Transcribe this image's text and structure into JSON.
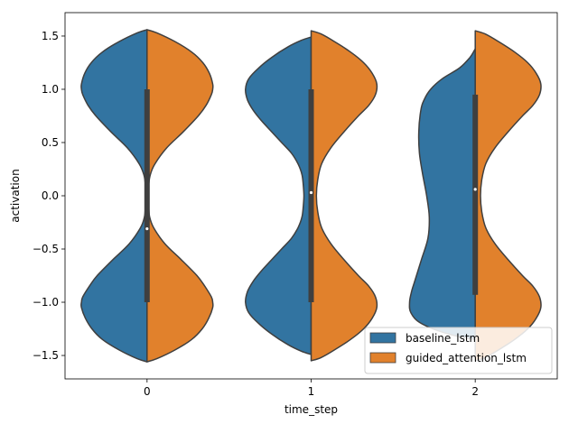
{
  "chart_data": {
    "type": "violin",
    "split": true,
    "xlabel": "time_step",
    "ylabel": "activation",
    "categories": [
      "0",
      "1",
      "2"
    ],
    "ylim": [
      -1.72,
      1.72
    ],
    "yticks": [
      -1.5,
      -1.0,
      -0.5,
      0.0,
      0.5,
      1.0,
      1.5
    ],
    "ytick_labels": [
      "−1.5",
      "−1.0",
      "−0.5",
      "0.0",
      "0.5",
      "1.0",
      "1.5"
    ],
    "grid": false,
    "legend": {
      "position": "lower right"
    },
    "series": [
      {
        "name": "baseline_lstm",
        "color": "#3274a1",
        "side": "left",
        "violins": [
          {
            "category": "0",
            "ymin": -1.56,
            "ymax": 1.56,
            "profile": [
              [
                1.56,
                0.0
              ],
              [
                1.53,
                0.15
              ],
              [
                1.45,
                0.42
              ],
              [
                1.35,
                0.68
              ],
              [
                1.25,
                0.85
              ],
              [
                1.15,
                0.95
              ],
              [
                1.05,
                1.0
              ],
              [
                1.0,
                1.0
              ],
              [
                0.95,
                0.98
              ],
              [
                0.85,
                0.9
              ],
              [
                0.75,
                0.78
              ],
              [
                0.6,
                0.55
              ],
              [
                0.45,
                0.3
              ],
              [
                0.3,
                0.12
              ],
              [
                0.2,
                0.05
              ],
              [
                0.1,
                0.025
              ],
              [
                0.0,
                0.02
              ],
              [
                -0.1,
                0.025
              ],
              [
                -0.2,
                0.04
              ],
              [
                -0.3,
                0.1
              ],
              [
                -0.45,
                0.27
              ],
              [
                -0.6,
                0.52
              ],
              [
                -0.75,
                0.76
              ],
              [
                -0.85,
                0.88
              ],
              [
                -0.95,
                0.98
              ],
              [
                -1.0,
                1.0
              ],
              [
                -1.05,
                1.0
              ],
              [
                -1.15,
                0.94
              ],
              [
                -1.25,
                0.84
              ],
              [
                -1.35,
                0.68
              ],
              [
                -1.45,
                0.42
              ],
              [
                -1.53,
                0.15
              ],
              [
                -1.56,
                0.0
              ]
            ]
          },
          {
            "category": "1",
            "ymin": -1.49,
            "ymax": 1.49,
            "profile": [
              [
                1.49,
                0.0
              ],
              [
                1.46,
                0.15
              ],
              [
                1.4,
                0.35
              ],
              [
                1.3,
                0.6
              ],
              [
                1.2,
                0.8
              ],
              [
                1.1,
                0.95
              ],
              [
                1.0,
                1.0
              ],
              [
                0.9,
                0.97
              ],
              [
                0.8,
                0.88
              ],
              [
                0.7,
                0.75
              ],
              [
                0.6,
                0.6
              ],
              [
                0.5,
                0.45
              ],
              [
                0.4,
                0.3
              ],
              [
                0.3,
                0.2
              ],
              [
                0.2,
                0.14
              ],
              [
                0.1,
                0.12
              ],
              [
                0.0,
                0.11
              ],
              [
                -0.1,
                0.12
              ],
              [
                -0.2,
                0.14
              ],
              [
                -0.3,
                0.2
              ],
              [
                -0.4,
                0.3
              ],
              [
                -0.5,
                0.45
              ],
              [
                -0.6,
                0.6
              ],
              [
                -0.7,
                0.75
              ],
              [
                -0.8,
                0.88
              ],
              [
                -0.9,
                0.97
              ],
              [
                -1.0,
                1.0
              ],
              [
                -1.1,
                0.95
              ],
              [
                -1.2,
                0.8
              ],
              [
                -1.3,
                0.6
              ],
              [
                -1.4,
                0.35
              ],
              [
                -1.46,
                0.15
              ],
              [
                -1.49,
                0.0
              ]
            ]
          },
          {
            "category": "2",
            "ymin": -1.35,
            "ymax": 1.38,
            "profile": [
              [
                1.38,
                0.0
              ],
              [
                1.3,
                0.08
              ],
              [
                1.2,
                0.24
              ],
              [
                1.1,
                0.5
              ],
              [
                1.0,
                0.68
              ],
              [
                0.9,
                0.78
              ],
              [
                0.8,
                0.83
              ],
              [
                0.6,
                0.86
              ],
              [
                0.4,
                0.85
              ],
              [
                0.2,
                0.8
              ],
              [
                0.0,
                0.74
              ],
              [
                -0.2,
                0.7
              ],
              [
                -0.4,
                0.72
              ],
              [
                -0.6,
                0.82
              ],
              [
                -0.8,
                0.92
              ],
              [
                -0.9,
                0.97
              ],
              [
                -1.0,
                1.0
              ],
              [
                -1.1,
                0.98
              ],
              [
                -1.2,
                0.82
              ],
              [
                -1.3,
                0.4
              ],
              [
                -1.35,
                0.0
              ]
            ]
          }
        ]
      },
      {
        "name": "guided_attention_lstm",
        "color": "#e1812c",
        "side": "right",
        "violins": [
          {
            "category": "0",
            "ymin": -1.56,
            "ymax": 1.56,
            "profile": [
              [
                1.56,
                0.0
              ],
              [
                1.53,
                0.15
              ],
              [
                1.45,
                0.42
              ],
              [
                1.35,
                0.68
              ],
              [
                1.25,
                0.85
              ],
              [
                1.15,
                0.95
              ],
              [
                1.05,
                1.0
              ],
              [
                1.0,
                1.0
              ],
              [
                0.95,
                0.98
              ],
              [
                0.85,
                0.9
              ],
              [
                0.75,
                0.78
              ],
              [
                0.6,
                0.55
              ],
              [
                0.45,
                0.3
              ],
              [
                0.3,
                0.12
              ],
              [
                0.2,
                0.05
              ],
              [
                0.1,
                0.025
              ],
              [
                0.0,
                0.02
              ],
              [
                -0.1,
                0.025
              ],
              [
                -0.2,
                0.04
              ],
              [
                -0.3,
                0.1
              ],
              [
                -0.45,
                0.27
              ],
              [
                -0.6,
                0.52
              ],
              [
                -0.75,
                0.76
              ],
              [
                -0.85,
                0.88
              ],
              [
                -0.95,
                0.98
              ],
              [
                -1.0,
                1.0
              ],
              [
                -1.05,
                1.0
              ],
              [
                -1.15,
                0.94
              ],
              [
                -1.25,
                0.84
              ],
              [
                -1.35,
                0.68
              ],
              [
                -1.45,
                0.42
              ],
              [
                -1.53,
                0.15
              ],
              [
                -1.56,
                0.0
              ]
            ]
          },
          {
            "category": "1",
            "ymin": -1.55,
            "ymax": 1.55,
            "profile": [
              [
                1.55,
                0.0
              ],
              [
                1.52,
                0.15
              ],
              [
                1.45,
                0.35
              ],
              [
                1.35,
                0.6
              ],
              [
                1.25,
                0.8
              ],
              [
                1.15,
                0.93
              ],
              [
                1.05,
                1.0
              ],
              [
                0.95,
                0.98
              ],
              [
                0.85,
                0.88
              ],
              [
                0.75,
                0.72
              ],
              [
                0.6,
                0.5
              ],
              [
                0.45,
                0.3
              ],
              [
                0.3,
                0.16
              ],
              [
                0.15,
                0.1
              ],
              [
                0.0,
                0.08
              ],
              [
                -0.15,
                0.1
              ],
              [
                -0.3,
                0.16
              ],
              [
                -0.45,
                0.3
              ],
              [
                -0.6,
                0.5
              ],
              [
                -0.75,
                0.72
              ],
              [
                -0.85,
                0.88
              ],
              [
                -0.95,
                0.98
              ],
              [
                -1.05,
                1.0
              ],
              [
                -1.15,
                0.93
              ],
              [
                -1.25,
                0.8
              ],
              [
                -1.35,
                0.6
              ],
              [
                -1.45,
                0.35
              ],
              [
                -1.52,
                0.15
              ],
              [
                -1.55,
                0.0
              ]
            ]
          },
          {
            "category": "2",
            "ymin": -1.55,
            "ymax": 1.55,
            "profile": [
              [
                1.55,
                0.0
              ],
              [
                1.52,
                0.15
              ],
              [
                1.45,
                0.35
              ],
              [
                1.35,
                0.6
              ],
              [
                1.25,
                0.8
              ],
              [
                1.15,
                0.93
              ],
              [
                1.05,
                1.0
              ],
              [
                0.95,
                0.98
              ],
              [
                0.85,
                0.88
              ],
              [
                0.75,
                0.72
              ],
              [
                0.6,
                0.5
              ],
              [
                0.45,
                0.3
              ],
              [
                0.3,
                0.16
              ],
              [
                0.15,
                0.1
              ],
              [
                0.0,
                0.08
              ],
              [
                -0.15,
                0.1
              ],
              [
                -0.3,
                0.16
              ],
              [
                -0.45,
                0.3
              ],
              [
                -0.6,
                0.5
              ],
              [
                -0.75,
                0.72
              ],
              [
                -0.85,
                0.88
              ],
              [
                -0.95,
                0.98
              ],
              [
                -1.05,
                1.0
              ],
              [
                -1.15,
                0.93
              ],
              [
                -1.25,
                0.8
              ],
              [
                -1.35,
                0.6
              ],
              [
                -1.45,
                0.35
              ],
              [
                -1.52,
                0.15
              ],
              [
                -1.55,
                0.0
              ]
            ]
          }
        ]
      }
    ],
    "inner_box": [
      {
        "category": "0",
        "q1": -1.0,
        "q3": 1.0,
        "median": -0.31
      },
      {
        "category": "1",
        "q1": -1.0,
        "q3": 1.0,
        "median": 0.03
      },
      {
        "category": "2",
        "q1": -0.93,
        "q3": 0.95,
        "median": 0.06
      }
    ]
  }
}
